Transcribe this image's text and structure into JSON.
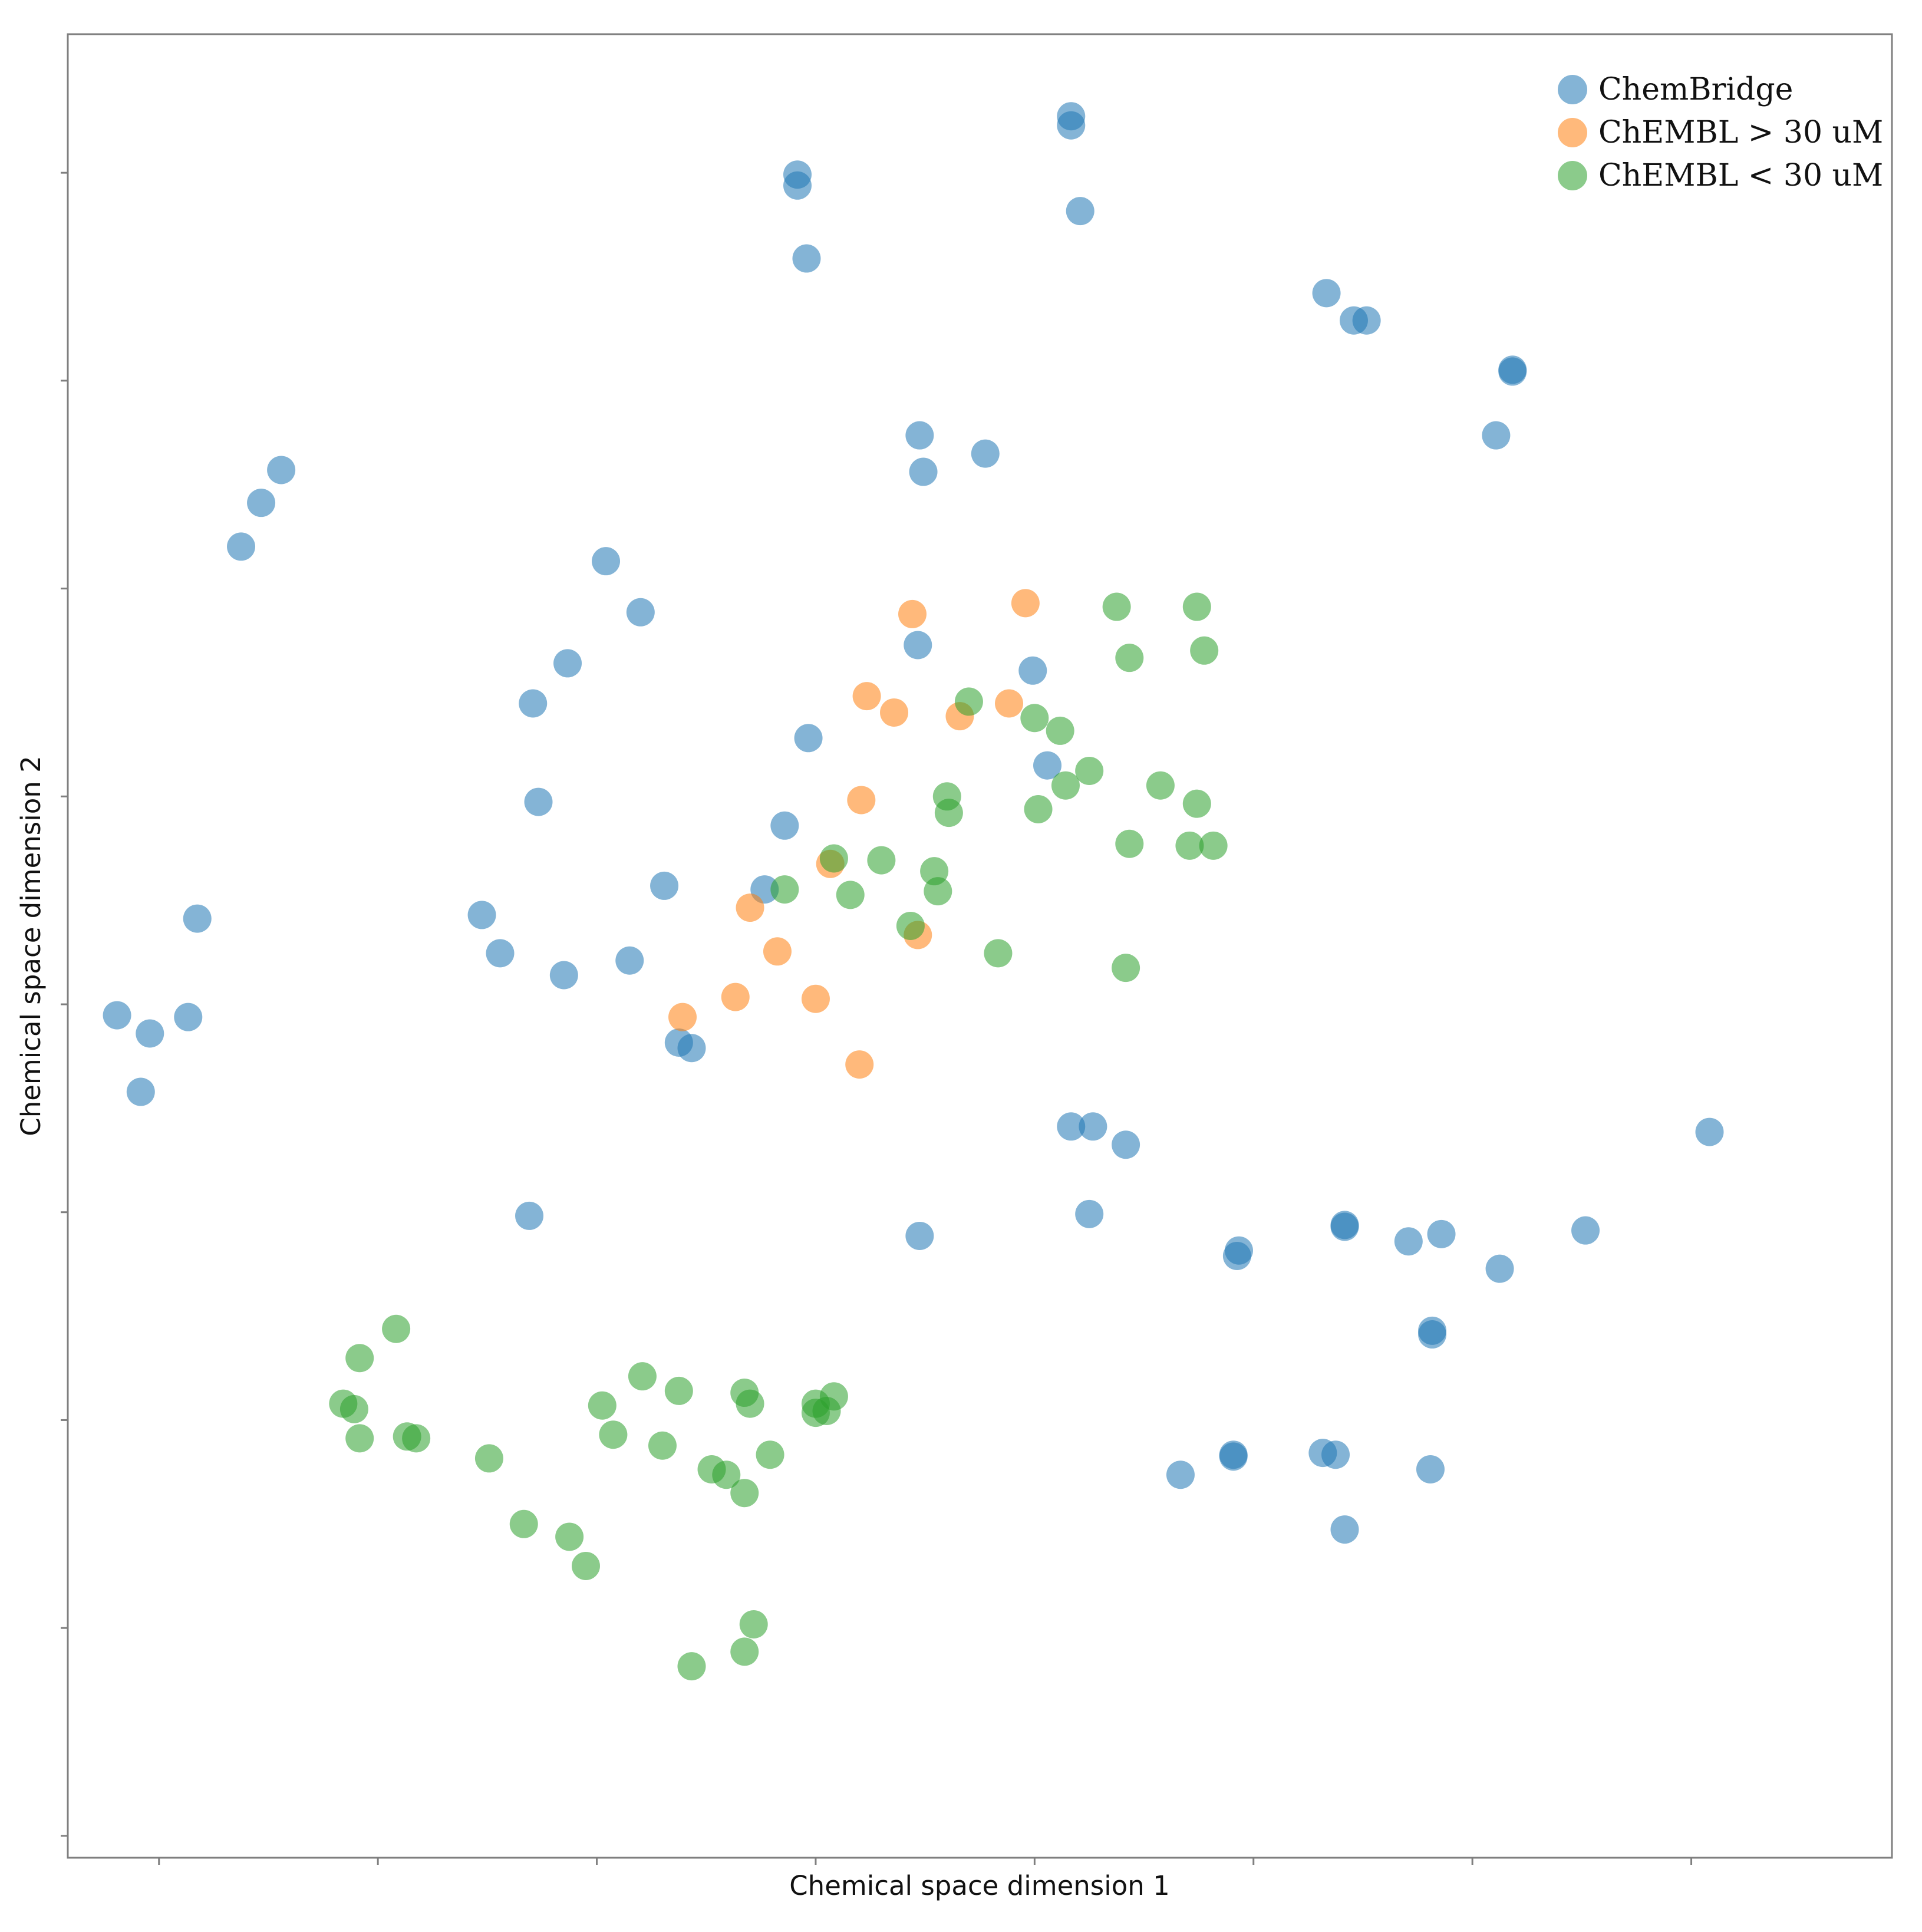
{
  "chart_data": {
    "type": "scatter",
    "xlabel": "Chemical space dimension 1",
    "ylabel": "Chemical space dimension 2",
    "xlim": [
      0,
      1000
    ],
    "ylim": [
      0,
      1000
    ],
    "x_ticks": [
      50,
      170,
      290,
      410,
      530,
      650,
      770,
      890
    ],
    "y_ticks": [
      12,
      126,
      240,
      354,
      468,
      582,
      696,
      810,
      924
    ],
    "legend": "top-right",
    "grid": false,
    "point_opacity": 0.55,
    "series": [
      {
        "name": "ChemBridge",
        "color": "#1f77b4",
        "x": [
          550,
          550,
          555,
          400,
          400,
          405,
          690,
          705,
          712,
          792,
          792,
          783,
          503,
          467,
          469,
          117,
          106,
          95,
          295,
          314,
          466,
          529,
          537,
          406,
          274,
          255,
          382,
          258,
          393,
          327,
          227,
          237,
          71,
          308,
          335,
          66,
          45,
          40,
          27,
          272,
          342,
          253,
          467,
          550,
          560,
          580,
          562,
          753,
          735,
          700,
          700,
          748,
          748,
          642,
          641,
          639,
          639,
          747,
          610,
          695,
          688,
          700,
          785,
          832,
          900
        ],
        "y": [
          955,
          950,
          903,
          923,
          917,
          877,
          858,
          843,
          843,
          816,
          815,
          780,
          770,
          780,
          760,
          761,
          743,
          719,
          711,
          683,
          665,
          651,
          599,
          614,
          655,
          633,
          531,
          579,
          566,
          533,
          517,
          496,
          515,
          492,
          447,
          461,
          452,
          420,
          462,
          484,
          444,
          352,
          341,
          401,
          353,
          391,
          401,
          342,
          338,
          347,
          346,
          287,
          289,
          333,
          330,
          221,
          220,
          213,
          210,
          221,
          222,
          180,
          323,
          344,
          398
        ]
      },
      {
        "name": "ChEMBL > 30 uM",
        "color": "#ff7f0e",
        "x": [
          463,
          525,
          438,
          453,
          489,
          516,
          435,
          374,
          418,
          466,
          366,
          389,
          410,
          337,
          434
        ],
        "y": [
          682,
          688,
          637,
          628,
          626,
          633,
          580,
          521,
          545,
          506,
          472,
          497,
          471,
          461,
          435
        ]
      },
      {
        "name": "ChEMBL < 30 uM",
        "color": "#2ca02c",
        "x": [
          575,
          619,
          623,
          582,
          494,
          530,
          544,
          560,
          482,
          483,
          420,
          446,
          475,
          532,
          547,
          599,
          615,
          619,
          582,
          628,
          393,
          429,
          477,
          462,
          510,
          580,
          180,
          160,
          157,
          151,
          160,
          186,
          191,
          231,
          250,
          275,
          284,
          315,
          335,
          293,
          299,
          374,
          371,
          410,
          416,
          385,
          326,
          353,
          361,
          371,
          420,
          410,
          342,
          371,
          376
        ],
        "y": [
          686,
          686,
          662,
          658,
          634,
          625,
          618,
          596,
          582,
          573,
          548,
          547,
          541,
          575,
          588,
          588,
          555,
          578,
          556,
          555,
          531,
          528,
          530,
          511,
          496,
          488,
          290,
          274,
          246,
          249,
          230,
          231,
          230,
          219,
          183,
          176,
          160,
          264,
          256,
          248,
          232,
          249,
          255,
          244,
          245,
          221,
          226,
          213,
          210,
          200,
          253,
          249,
          105,
          113,
          128
        ]
      }
    ]
  }
}
